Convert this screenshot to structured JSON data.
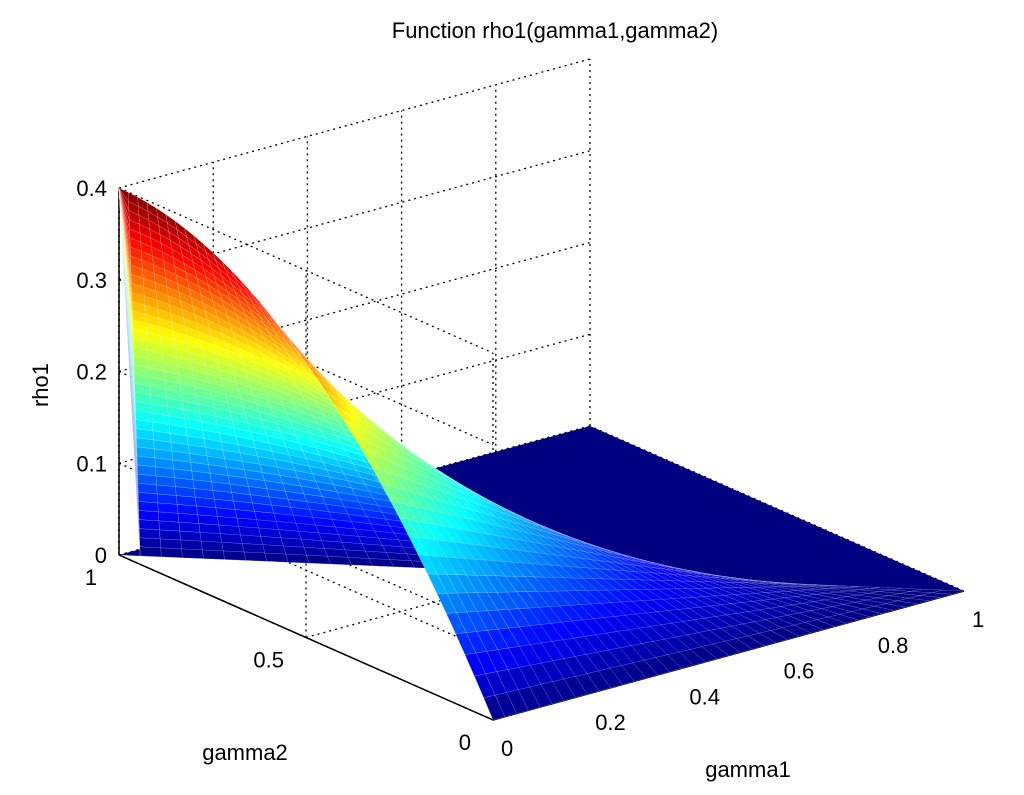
{
  "chart_data": {
    "type": "surface",
    "title": "Function rho1(gamma1,gamma2)",
    "xlabel": "gamma1",
    "ylabel": "gamma2",
    "zlabel": "rho1",
    "xlim": [
      0,
      1
    ],
    "ylim": [
      0,
      1
    ],
    "zlim": [
      0,
      0.4
    ],
    "x_ticks": [
      "0",
      "0.2",
      "0.4",
      "0.6",
      "0.8",
      "1"
    ],
    "y_ticks": [
      "0",
      "0.5",
      "1"
    ],
    "z_ticks": [
      "0",
      "0.1",
      "0.2",
      "0.3",
      "0.4"
    ],
    "grid": true,
    "colormap": "jet",
    "surface_description": "rho1 is 0 where gamma1 + gamma2 > 1; in the region gamma1 + gamma2 <= 1 it rises toward about 0.4 at gamma1 = 0, gamma2 = 1",
    "sample_points": [
      {
        "gamma1": 0,
        "gamma2": 1.0,
        "rho1": 0.4
      },
      {
        "gamma1": 0,
        "gamma2": 0.75,
        "rho1": 0.35
      },
      {
        "gamma1": 0,
        "gamma2": 0.5,
        "rho1": 0.25
      },
      {
        "gamma1": 0,
        "gamma2": 0.25,
        "rho1": 0.12
      },
      {
        "gamma1": 0,
        "gamma2": 0,
        "rho1": 0
      },
      {
        "gamma1": 0.5,
        "gamma2": 0.5,
        "rho1": 0
      },
      {
        "gamma1": 1,
        "gamma2": 0,
        "rho1": 0
      },
      {
        "gamma1": 1,
        "gamma2": 1,
        "rho1": 0
      }
    ]
  }
}
